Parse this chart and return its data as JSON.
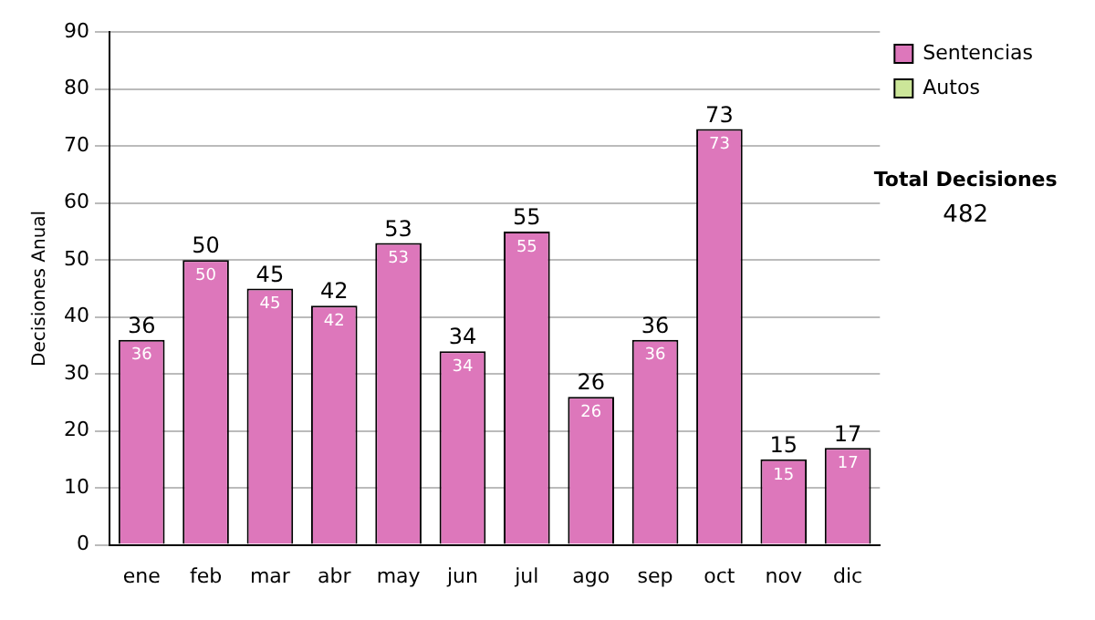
{
  "chart_data": {
    "type": "bar",
    "ylabel": "Decisiones Anual",
    "categories": [
      "ene",
      "feb",
      "mar",
      "abr",
      "may",
      "jun",
      "jul",
      "ago",
      "sep",
      "oct",
      "nov",
      "dic"
    ],
    "series": [
      {
        "name": "Sentencias",
        "color": "#dd77bb",
        "values": [
          36,
          50,
          45,
          42,
          53,
          34,
          55,
          26,
          36,
          73,
          15,
          17
        ]
      },
      {
        "name": "Autos",
        "color": "#cce699",
        "values": [
          null,
          null,
          null,
          null,
          null,
          null,
          null,
          null,
          null,
          null,
          null,
          null
        ]
      }
    ],
    "ylim": [
      0,
      90
    ],
    "yticks": [
      0,
      10,
      20,
      30,
      40,
      50,
      60,
      70,
      80,
      90
    ],
    "grid": "y",
    "legend": "right",
    "data_labels": true,
    "stacked": true,
    "totals": [
      "36",
      "50",
      "45",
      "42",
      "53",
      "34",
      "55",
      "26",
      "36",
      "73",
      "15",
      "17"
    ],
    "annotations": [
      "Total Decisiones",
      "482"
    ]
  }
}
